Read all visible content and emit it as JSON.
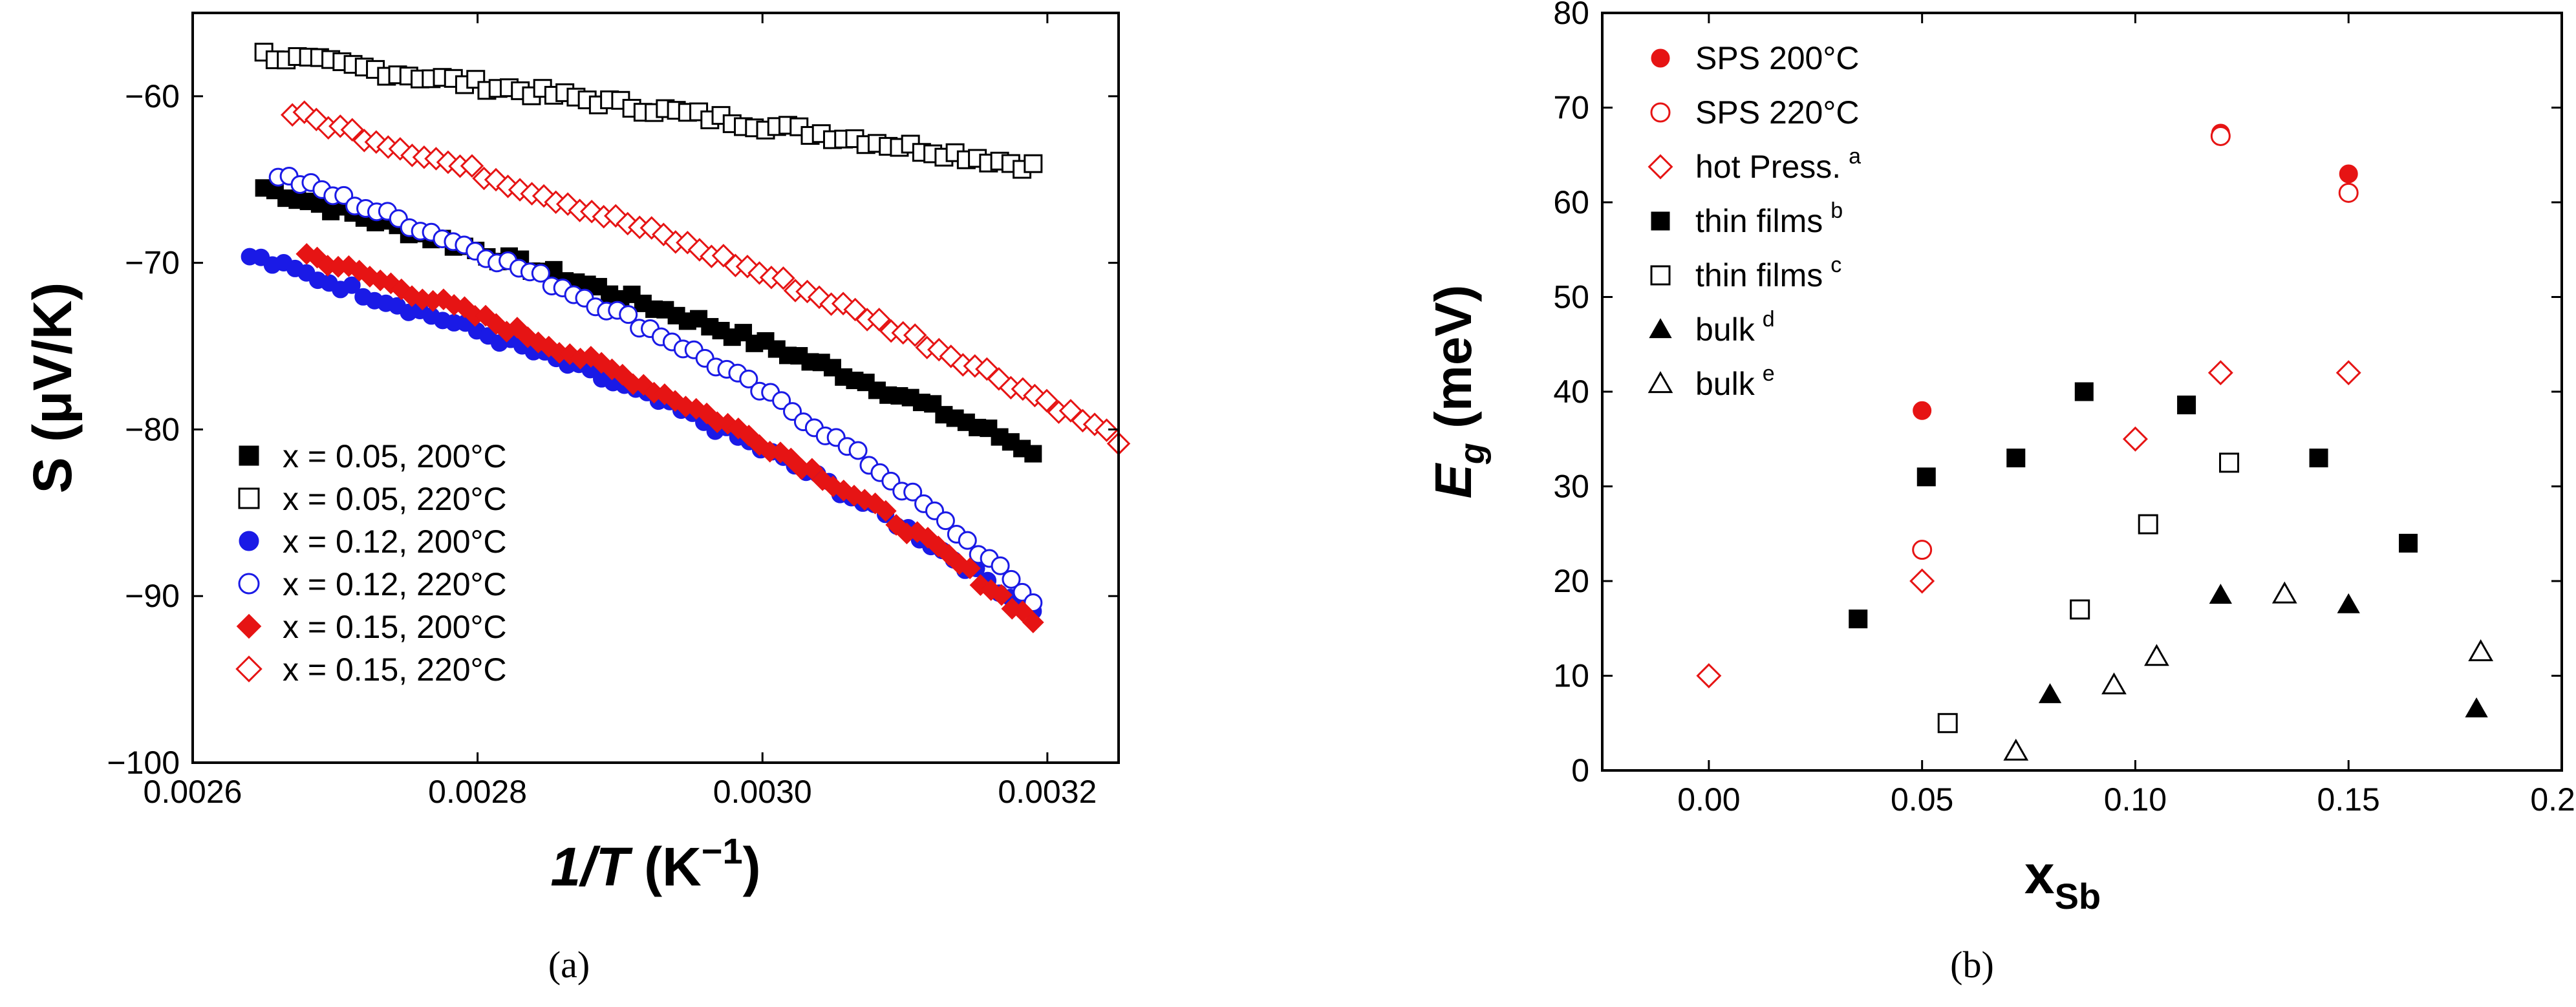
{
  "panel_labels": {
    "a": "(a)",
    "b": "(b)"
  },
  "chart_data": [
    {
      "type": "scatter",
      "title": "",
      "xlabel": "1/T (K−1)",
      "xlabel_parts": {
        "main": "1/T",
        "unit_open": " (K",
        "sup": "−1",
        "unit_close": ")"
      },
      "ylabel": "S (μV/K)",
      "ylabel_parts": {
        "main": "S",
        "unit": " (μV/K)"
      },
      "xlim": [
        0.0026,
        0.00325
      ],
      "ylim": [
        -100,
        -55
      ],
      "xticks": [
        0.0026,
        0.0028,
        0.003,
        0.0032
      ],
      "xtick_labels": [
        "0.0026",
        "0.0028",
        "0.0030",
        "0.0032"
      ],
      "yticks": [
        -100,
        -90,
        -80,
        -70,
        -60
      ],
      "ytick_labels": [
        "−100",
        "−90",
        "−80",
        "−70",
        "−60"
      ],
      "legend_position": "bottom-left",
      "series": [
        {
          "name": "x = 0.05, 200°C",
          "color": "#000000",
          "marker": "square",
          "filled": true,
          "x_range": [
            0.00265,
            0.00319
          ],
          "y_start": -65.5,
          "y_end": -81.3,
          "curve": 0.15
        },
        {
          "name": "x = 0.05, 220°C",
          "color": "#000000",
          "marker": "square",
          "filled": false,
          "x_range": [
            0.00265,
            0.00319
          ],
          "y_start": -57.5,
          "y_end": -64.2,
          "curve": 0.05
        },
        {
          "name": "x = 0.12, 200°C",
          "color": "#1a1ae6",
          "marker": "circle",
          "filled": true,
          "x_range": [
            0.00264,
            0.00319
          ],
          "y_start": -69.6,
          "y_end": -91.0,
          "curve": 0.3
        },
        {
          "name": "x = 0.12, 220°C",
          "color": "#1a1ae6",
          "marker": "circle",
          "filled": false,
          "x_range": [
            0.00266,
            0.00319
          ],
          "y_start": -64.7,
          "y_end": -90.3,
          "curve": 0.35
        },
        {
          "name": "x = 0.15, 200°C",
          "color": "#e61414",
          "marker": "diamond",
          "filled": true,
          "x_range": [
            0.00268,
            0.00319
          ],
          "y_start": -69.5,
          "y_end": -91.5,
          "curve": 0.3
        },
        {
          "name": "x = 0.15, 220°C",
          "color": "#e61414",
          "marker": "diamond",
          "filled": false,
          "x_range": [
            0.00267,
            0.00325
          ],
          "y_start": -61.0,
          "y_end": -80.6,
          "curve": 0.2
        }
      ]
    },
    {
      "type": "scatter",
      "title": "",
      "xlabel": "xSb",
      "xlabel_parts": {
        "main": "x",
        "sub": "Sb"
      },
      "ylabel": "Eg (meV)",
      "ylabel_parts": {
        "main": "E",
        "sub": "g",
        "unit": " (meV)"
      },
      "xlim": [
        -0.025,
        0.2
      ],
      "ylim": [
        0,
        80
      ],
      "xticks": [
        0.0,
        0.05,
        0.1,
        0.15,
        0.2
      ],
      "xtick_labels": [
        "0.00",
        "0.05",
        "0.10",
        "0.15",
        "0.20"
      ],
      "yticks": [
        0,
        10,
        20,
        30,
        40,
        50,
        60,
        70,
        80
      ],
      "ytick_labels": [
        "0",
        "10",
        "20",
        "30",
        "40",
        "50",
        "60",
        "70",
        "80"
      ],
      "legend_position": "top-left",
      "series": [
        {
          "name": "SPS 200°C",
          "sup": "",
          "color": "#e61414",
          "marker": "circle",
          "filled": true,
          "points": [
            [
              0.05,
              38
            ],
            [
              0.12,
              67.3
            ],
            [
              0.15,
              63
            ]
          ]
        },
        {
          "name": "SPS 220°C",
          "sup": "",
          "color": "#e61414",
          "marker": "circle",
          "filled": false,
          "points": [
            [
              0.05,
              23.3
            ],
            [
              0.12,
              67
            ],
            [
              0.15,
              61
            ]
          ]
        },
        {
          "name": "hot Press.",
          "sup": "a",
          "color": "#e61414",
          "marker": "diamond",
          "filled": false,
          "points": [
            [
              0.0,
              10
            ],
            [
              0.05,
              20
            ],
            [
              0.1,
              35
            ],
            [
              0.12,
              42
            ],
            [
              0.15,
              42
            ]
          ]
        },
        {
          "name": "thin films",
          "sup": "b",
          "color": "#000000",
          "marker": "square",
          "filled": true,
          "points": [
            [
              0.035,
              16
            ],
            [
              0.051,
              31
            ],
            [
              0.072,
              33
            ],
            [
              0.088,
              40
            ],
            [
              0.112,
              38.6
            ],
            [
              0.143,
              33
            ],
            [
              0.164,
              24
            ]
          ]
        },
        {
          "name": "thin films",
          "sup": "c",
          "color": "#000000",
          "marker": "square",
          "filled": false,
          "points": [
            [
              0.056,
              5
            ],
            [
              0.087,
              17
            ],
            [
              0.103,
              26
            ],
            [
              0.122,
              32.5
            ]
          ]
        },
        {
          "name": "bulk",
          "sup": "d",
          "color": "#000000",
          "marker": "triangle",
          "filled": true,
          "points": [
            [
              0.08,
              8
            ],
            [
              0.12,
              18.5
            ],
            [
              0.15,
              17.5
            ],
            [
              0.18,
              6.5
            ]
          ]
        },
        {
          "name": "bulk",
          "sup": "e",
          "color": "#000000",
          "marker": "triangle",
          "filled": false,
          "points": [
            [
              0.072,
              2
            ],
            [
              0.095,
              9
            ],
            [
              0.105,
              12
            ],
            [
              0.135,
              18.6
            ],
            [
              0.181,
              12.5
            ]
          ]
        }
      ]
    }
  ]
}
